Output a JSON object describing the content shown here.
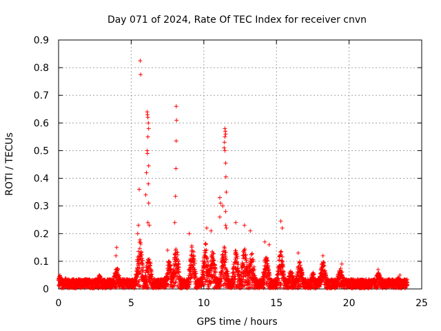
{
  "chart_data": {
    "type": "scatter",
    "title": "Day 071 of 2024, Rate Of TEC Index for receiver cnvn",
    "xlabel": "GPS time / hours",
    "ylabel": "ROTI / TECUs",
    "xlim": [
      0,
      25
    ],
    "ylim": [
      0,
      0.9
    ],
    "x_ticks": [
      "0",
      "5",
      "10",
      "15",
      "20",
      "25"
    ],
    "y_ticks": [
      "0",
      "0.1",
      "0.2",
      "0.3",
      "0.4",
      "0.5",
      "0.6",
      "0.7",
      "0.8",
      "0.9"
    ],
    "grid": true,
    "marker": "+",
    "color": "#ff0000",
    "series": [
      {
        "name": "",
        "points": [
          [
            5.62,
            0.825
          ],
          [
            5.65,
            0.775
          ],
          [
            5.55,
            0.36
          ],
          [
            5.5,
            0.23
          ],
          [
            5.45,
            0.2
          ],
          [
            6.1,
            0.64
          ],
          [
            6.12,
            0.63
          ],
          [
            6.15,
            0.62
          ],
          [
            6.18,
            0.6
          ],
          [
            6.2,
            0.58
          ],
          [
            6.15,
            0.55
          ],
          [
            6.1,
            0.5
          ],
          [
            6.12,
            0.49
          ],
          [
            6.2,
            0.445
          ],
          [
            6.05,
            0.42
          ],
          [
            6.18,
            0.38
          ],
          [
            6.0,
            0.34
          ],
          [
            6.2,
            0.31
          ],
          [
            6.15,
            0.24
          ],
          [
            6.25,
            0.23
          ],
          [
            8.1,
            0.66
          ],
          [
            8.12,
            0.61
          ],
          [
            8.1,
            0.535
          ],
          [
            8.08,
            0.435
          ],
          [
            8.05,
            0.335
          ],
          [
            8.0,
            0.24
          ],
          [
            11.45,
            0.58
          ],
          [
            11.48,
            0.57
          ],
          [
            11.5,
            0.56
          ],
          [
            11.45,
            0.55
          ],
          [
            11.42,
            0.53
          ],
          [
            11.4,
            0.51
          ],
          [
            11.45,
            0.5
          ],
          [
            11.5,
            0.455
          ],
          [
            11.52,
            0.405
          ],
          [
            11.55,
            0.35
          ],
          [
            11.1,
            0.33
          ],
          [
            11.15,
            0.31
          ],
          [
            11.3,
            0.3
          ],
          [
            11.5,
            0.28
          ],
          [
            11.1,
            0.26
          ],
          [
            11.5,
            0.23
          ],
          [
            11.55,
            0.22
          ],
          [
            4.0,
            0.15
          ],
          [
            3.95,
            0.12
          ],
          [
            7.5,
            0.14
          ],
          [
            9.0,
            0.2
          ],
          [
            10.2,
            0.22
          ],
          [
            10.5,
            0.21
          ],
          [
            12.2,
            0.24
          ],
          [
            12.8,
            0.23
          ],
          [
            13.2,
            0.21
          ],
          [
            14.2,
            0.17
          ],
          [
            14.5,
            0.16
          ],
          [
            15.3,
            0.245
          ],
          [
            15.4,
            0.22
          ],
          [
            16.5,
            0.13
          ],
          [
            18.2,
            0.12
          ],
          [
            19.5,
            0.09
          ],
          [
            22.0,
            0.07
          ],
          [
            23.5,
            0.05
          ]
        ]
      }
    ]
  }
}
